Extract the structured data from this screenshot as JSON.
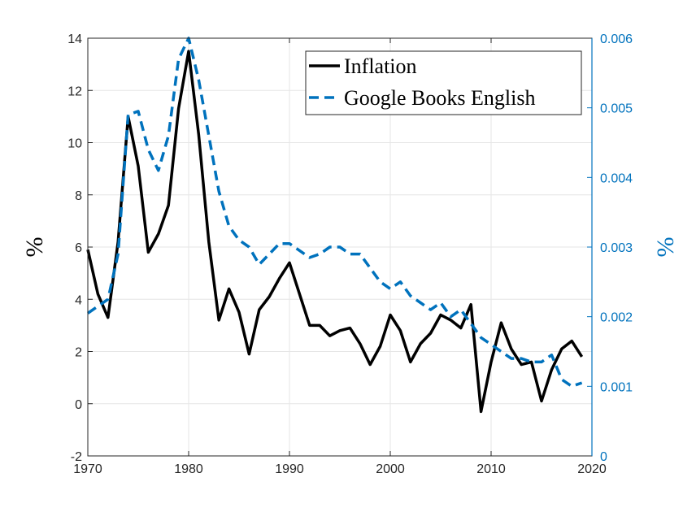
{
  "chart_data": {
    "type": "line",
    "title": "",
    "xlabel": "",
    "ylabel": "%",
    "y2label": "%",
    "xlim": [
      1970,
      2020
    ],
    "xticks": [
      "1970",
      "1980",
      "1990",
      "2000",
      "2010",
      "2020"
    ],
    "ylim": [
      -2,
      14
    ],
    "yticks": [
      "-2",
      "0",
      "2",
      "4",
      "6",
      "8",
      "10",
      "12",
      "14"
    ],
    "y2lim": [
      0,
      0.006
    ],
    "y2ticks": [
      "0",
      "0.001",
      "0.002",
      "0.003",
      "0.004",
      "0.005",
      "0.006"
    ],
    "grid": true,
    "legend_position": "top-right",
    "series": [
      {
        "name": "Inflation",
        "axis": "left",
        "color": "#000000",
        "style": "solid",
        "x": [
          1970,
          1971,
          1972,
          1973,
          1974,
          1975,
          1976,
          1977,
          1978,
          1979,
          1980,
          1981,
          1982,
          1983,
          1984,
          1985,
          1986,
          1987,
          1988,
          1989,
          1990,
          1991,
          1992,
          1993,
          1994,
          1995,
          1996,
          1997,
          1998,
          1999,
          2000,
          2001,
          2002,
          2003,
          2004,
          2005,
          2006,
          2007,
          2008,
          2009,
          2010,
          2011,
          2012,
          2013,
          2014,
          2015,
          2016,
          2017,
          2018,
          2019
        ],
        "values": [
          5.9,
          4.2,
          3.3,
          6.2,
          11.0,
          9.1,
          5.8,
          6.5,
          7.6,
          11.3,
          13.5,
          10.3,
          6.2,
          3.2,
          4.4,
          3.5,
          1.9,
          3.6,
          4.1,
          4.8,
          5.4,
          4.2,
          3.0,
          3.0,
          2.6,
          2.8,
          2.9,
          2.3,
          1.5,
          2.2,
          3.4,
          2.8,
          1.6,
          2.3,
          2.7,
          3.4,
          3.2,
          2.9,
          3.8,
          -0.3,
          1.6,
          3.1,
          2.1,
          1.5,
          1.6,
          0.1,
          1.3,
          2.1,
          2.4,
          1.8
        ]
      },
      {
        "name": "Google Books English",
        "axis": "right",
        "color": "#0072BD",
        "style": "dashed",
        "x": [
          1970,
          1971,
          1972,
          1973,
          1974,
          1975,
          1976,
          1977,
          1978,
          1979,
          1980,
          1981,
          1982,
          1983,
          1984,
          1985,
          1986,
          1987,
          1988,
          1989,
          1990,
          1991,
          1992,
          1993,
          1994,
          1995,
          1996,
          1997,
          1998,
          1999,
          2000,
          2001,
          2002,
          2003,
          2004,
          2005,
          2006,
          2007,
          2008,
          2009,
          2010,
          2011,
          2012,
          2013,
          2014,
          2015,
          2016,
          2017,
          2018,
          2019
        ],
        "values": [
          0.00205,
          0.00215,
          0.00225,
          0.0029,
          0.0049,
          0.00495,
          0.0044,
          0.0041,
          0.0046,
          0.0057,
          0.006,
          0.0054,
          0.0046,
          0.0038,
          0.0033,
          0.0031,
          0.003,
          0.00275,
          0.0029,
          0.00305,
          0.00305,
          0.00295,
          0.00285,
          0.0029,
          0.003,
          0.003,
          0.0029,
          0.0029,
          0.0027,
          0.0025,
          0.0024,
          0.0025,
          0.0023,
          0.0022,
          0.0021,
          0.0022,
          0.002,
          0.0021,
          0.0019,
          0.0017,
          0.0016,
          0.0015,
          0.0014,
          0.0014,
          0.00135,
          0.00135,
          0.00145,
          0.0011,
          0.001,
          0.00105
        ]
      }
    ]
  }
}
